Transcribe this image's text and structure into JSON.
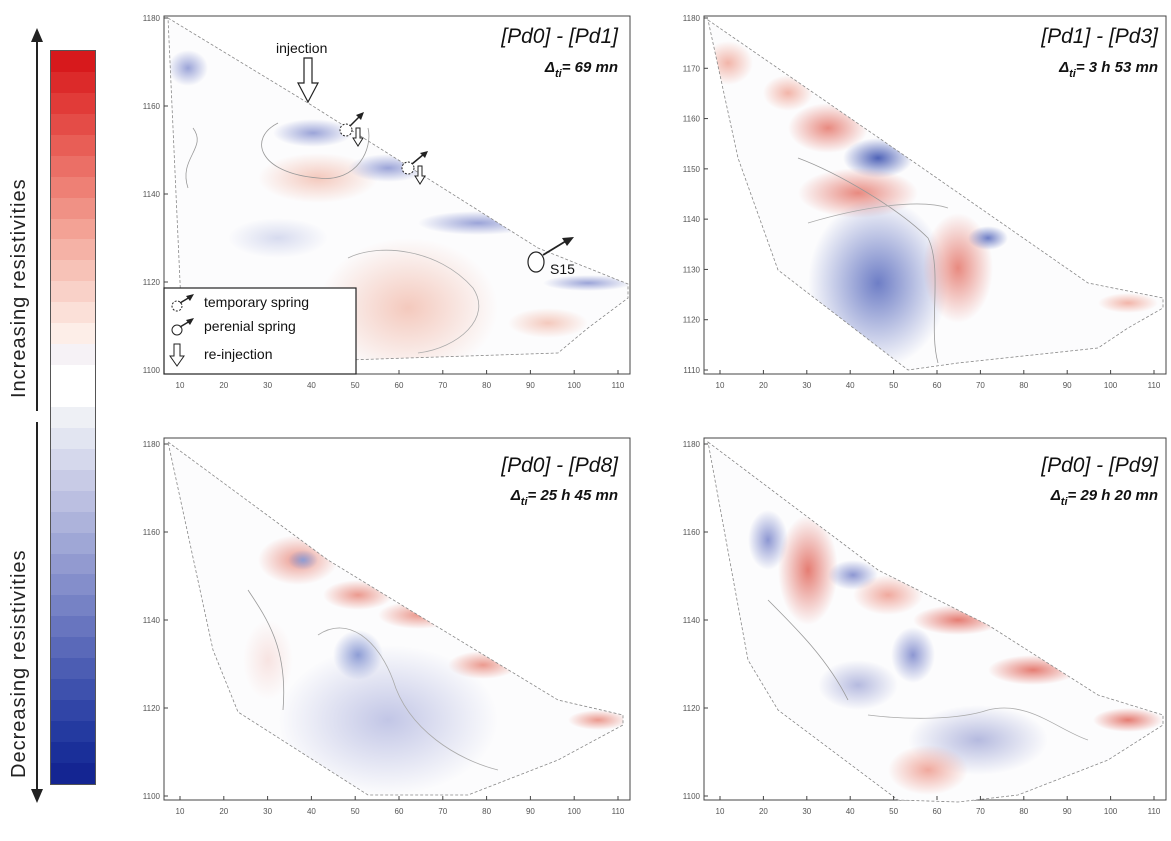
{
  "colorbar": {
    "increasing_label": "Increasing resistivities",
    "decreasing_label": "Decreasing resistivities",
    "colors": [
      "#d7191c",
      "#dc2a2a",
      "#e13b38",
      "#e44c47",
      "#e85e56",
      "#eb6f66",
      "#ee8075",
      "#f09185",
      "#f3a295",
      "#f5b2a6",
      "#f7c2b7",
      "#f9d1c8",
      "#fbe0d8",
      "#fdeee8",
      "#f6f2f6",
      "#ffffff",
      "#ffffff",
      "#eef0f5",
      "#e2e5f1",
      "#d5d8ec",
      "#c8cbe6",
      "#bbbfe1",
      "#adb3db",
      "#9fa7d6",
      "#929ad0",
      "#848ecb",
      "#7682c5",
      "#6875bf",
      "#5a69b9",
      "#4c5db3",
      "#3e51ad",
      "#3145a7",
      "#243aa0",
      "#1a2f99",
      "#142592"
    ]
  },
  "panels": [
    {
      "id": "pd0-pd1",
      "title": "[Pd0] - [Pd1]",
      "delta": "Δ",
      "delta_sub": "ti",
      "delta_value": "= 69 mn",
      "y_ticks": [
        "1180",
        "1160",
        "1140",
        "1120",
        "1100"
      ],
      "x_ticks": [
        "10",
        "20",
        "30",
        "40",
        "50",
        "60",
        "70",
        "80",
        "90",
        "100",
        "110"
      ],
      "annotations": {
        "injection": "injection",
        "spring": "S15",
        "legend": [
          "temporary spring",
          "perenial spring",
          "re-injection"
        ]
      }
    },
    {
      "id": "pd1-pd3",
      "title": "[Pd1] - [Pd3]",
      "delta": "Δ",
      "delta_sub": "ti",
      "delta_value": "= 3 h 53 mn",
      "y_ticks": [
        "1180",
        "1170",
        "1160",
        "1150",
        "1140",
        "1130",
        "1120",
        "1110"
      ],
      "x_ticks": [
        "10",
        "20",
        "30",
        "40",
        "50",
        "60",
        "70",
        "80",
        "90",
        "100",
        "110"
      ]
    },
    {
      "id": "pd0-pd8",
      "title": "[Pd0] - [Pd8]",
      "delta": "Δ",
      "delta_sub": "ti",
      "delta_value": "= 25 h 45 mn",
      "y_ticks": [
        "1180",
        "1160",
        "1140",
        "1120",
        "1100"
      ],
      "x_ticks": [
        "10",
        "20",
        "30",
        "40",
        "50",
        "60",
        "70",
        "80",
        "90",
        "100",
        "110"
      ]
    },
    {
      "id": "pd0-pd9",
      "title": "[Pd0] - [Pd9]",
      "delta": "Δ",
      "delta_sub": "ti",
      "delta_value": "= 29 h 20 mn",
      "y_ticks": [
        "1180",
        "1160",
        "1140",
        "1120",
        "1100"
      ],
      "x_ticks": [
        "10",
        "20",
        "30",
        "40",
        "50",
        "60",
        "70",
        "80",
        "90",
        "100",
        "110"
      ]
    }
  ]
}
